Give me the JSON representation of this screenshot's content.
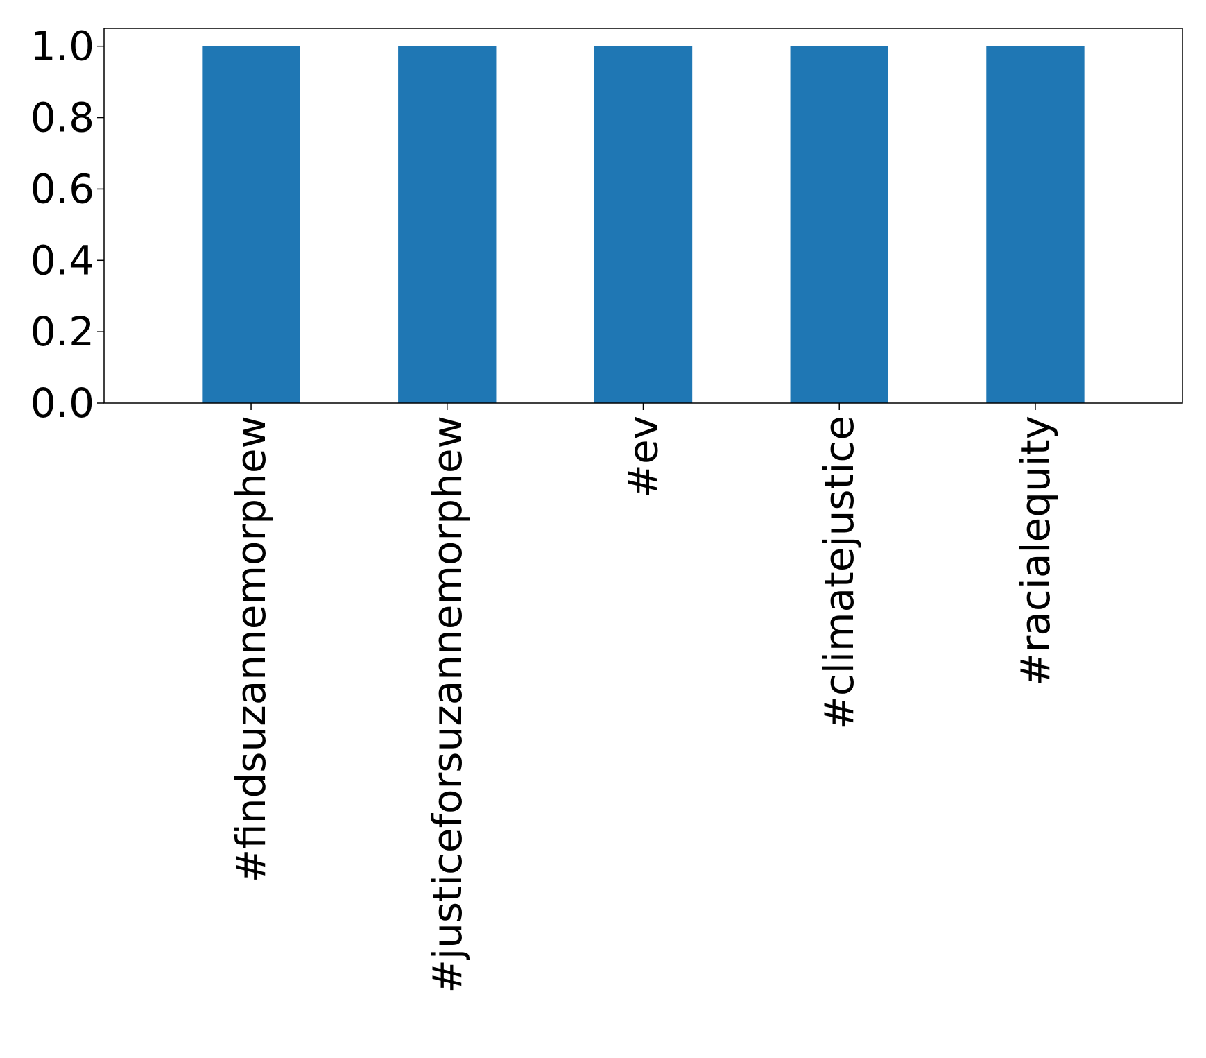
{
  "chart_data": {
    "type": "bar",
    "categories": [
      "#findsuzannemorphew",
      "#justiceforsuzannemorphew",
      "#ev",
      "#climatejustice",
      "#racialequity"
    ],
    "values": [
      1.0,
      1.0,
      1.0,
      1.0,
      1.0
    ],
    "ylim": [
      0,
      1.05
    ],
    "yticks": [
      "0.0",
      "0.2",
      "0.4",
      "0.6",
      "0.8",
      "1.0"
    ],
    "title": "",
    "xlabel": "",
    "ylabel": "",
    "bar_color": "#1f77b4",
    "grid": false
  }
}
